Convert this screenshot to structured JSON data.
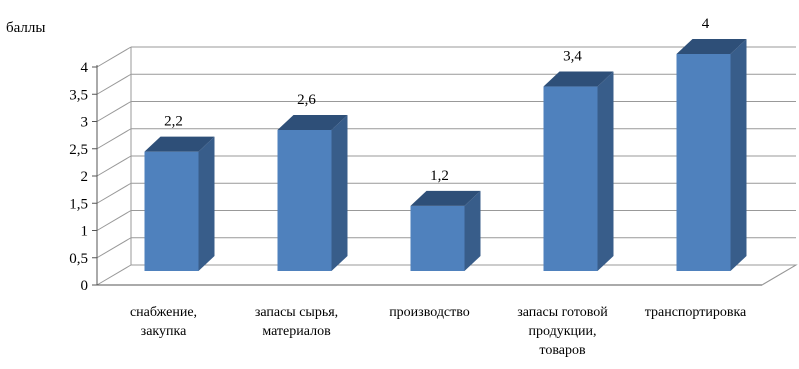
{
  "chart_data": {
    "type": "bar",
    "ylabel": "баллы",
    "categories": [
      [
        "снабжение,",
        "закупка"
      ],
      [
        "запасы сырья,",
        "материалов"
      ],
      [
        "производство"
      ],
      [
        "запасы готовой",
        "продукции,",
        "товаров"
      ],
      [
        "транспортировка"
      ]
    ],
    "values": [
      2.2,
      2.6,
      1.2,
      3.4,
      4
    ],
    "data_labels": [
      "2,2",
      "2,6",
      "1,2",
      "3,4",
      "4"
    ],
    "y_ticks": [
      "0",
      "0,5",
      "1",
      "1,5",
      "2",
      "2,5",
      "3",
      "3,5",
      "4"
    ],
    "ylim": [
      0,
      4
    ],
    "grid": true,
    "three_d": true,
    "colors": {
      "bar_front": "#4f81bd",
      "bar_side": "#385d8a",
      "bar_top": "#2e4f78",
      "grid": "#999999",
      "axis": "#555555"
    }
  }
}
